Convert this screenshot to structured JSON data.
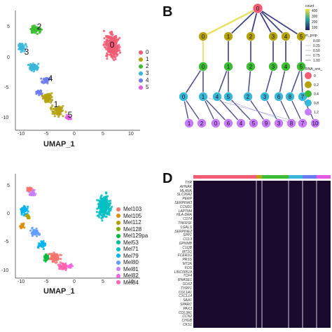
{
  "panels": {
    "B": "B",
    "D": "D"
  },
  "umap_top": {
    "xlabel": "UMAP_1",
    "xticks": [
      "-10",
      "-5",
      "0",
      "5",
      "10"
    ],
    "yticks": [
      "5",
      "0",
      "-5",
      "-10"
    ],
    "cluster_labels": [
      "0",
      "1",
      "2",
      "3",
      "4",
      "5"
    ],
    "legend": [
      "0",
      "1",
      "2",
      "3",
      "4",
      "5"
    ],
    "colors": [
      "#f25c74",
      "#b5a20f",
      "#3dbd33",
      "#39b7d9",
      "#6c7bf2",
      "#e45ae0"
    ]
  },
  "umap_bottom": {
    "xlabel": "UMAP_1",
    "xticks": [
      "-10",
      "-5",
      "0",
      "5",
      "10"
    ],
    "yticks": [
      "5",
      "0",
      "-5",
      "-10"
    ],
    "legend": [
      "Mel103",
      "Mel105",
      "Mel112",
      "Mel128",
      "Mel129pa",
      "Mel53",
      "Mel71",
      "Mel79",
      "Mel80",
      "Mel81",
      "Mel82",
      "Mel84"
    ],
    "colors": [
      "#f8766d",
      "#de8c00",
      "#b79f00",
      "#7cae00",
      "#00ba38",
      "#00c08b",
      "#00bfc4",
      "#00b4f0",
      "#619cff",
      "#c77cff",
      "#f564e3",
      "#ff64b0"
    ]
  },
  "tree": {
    "root": "0",
    "level1": [
      "0",
      "1",
      "2",
      "3",
      "4",
      "5"
    ],
    "level2": [
      "0",
      "1",
      "2",
      "3",
      "4",
      "5"
    ],
    "level3": [
      "0",
      "1",
      "4",
      "5",
      "2",
      "3",
      "6",
      "8",
      "7"
    ],
    "level4": [
      "1",
      "2",
      "0",
      "6",
      "4",
      "5",
      "9",
      "3",
      "8",
      "7",
      "10"
    ],
    "legend_count_title": "count",
    "legend_count_ticks": [
      "400",
      "300",
      "200",
      "100"
    ],
    "legend_inprop_title": "in_prop",
    "legend_inprop_ticks": [
      "0.00",
      "0.25",
      "0.50",
      "0.75",
      "1.00"
    ],
    "legend_res_title": "RNA_snn_",
    "legend_res_ticks": [
      "0",
      "0.2",
      "0.4",
      "0.8",
      "1.2"
    ],
    "legend_res_colors": [
      "#f25c74",
      "#b5a20f",
      "#3dbd33",
      "#39b7d9",
      "#c77cff"
    ]
  },
  "heatmap": {
    "genes": [
      "TYR",
      "AHNAK",
      "MLANA",
      "SLC26A2",
      "PERP",
      "SERPINA3",
      "CCND1",
      "LAPTM4",
      "HLA-DRA",
      "CD74",
      "TNFRSF",
      "LGALS",
      "SERPINE2",
      "SPP1",
      "CCL3",
      "GPNMB",
      "C1QB",
      "MT1G",
      "FCER1G",
      "PRSS",
      "MT2A",
      "FOS",
      "LINC00518",
      "TCF4",
      "RNASE1",
      "SOX2",
      "TYRP1",
      "COL1A1",
      "CXCL14",
      "SAA1",
      "SPARC",
      "PAX3",
      "COL3A1",
      "CCN2",
      "CHGB",
      "CKS1"
    ],
    "top_bar_colors": [
      "#f25c74",
      "#b5a20f",
      "#3dbd33",
      "#39b7d9",
      "#6c7bf2",
      "#e45ae0"
    ]
  }
}
